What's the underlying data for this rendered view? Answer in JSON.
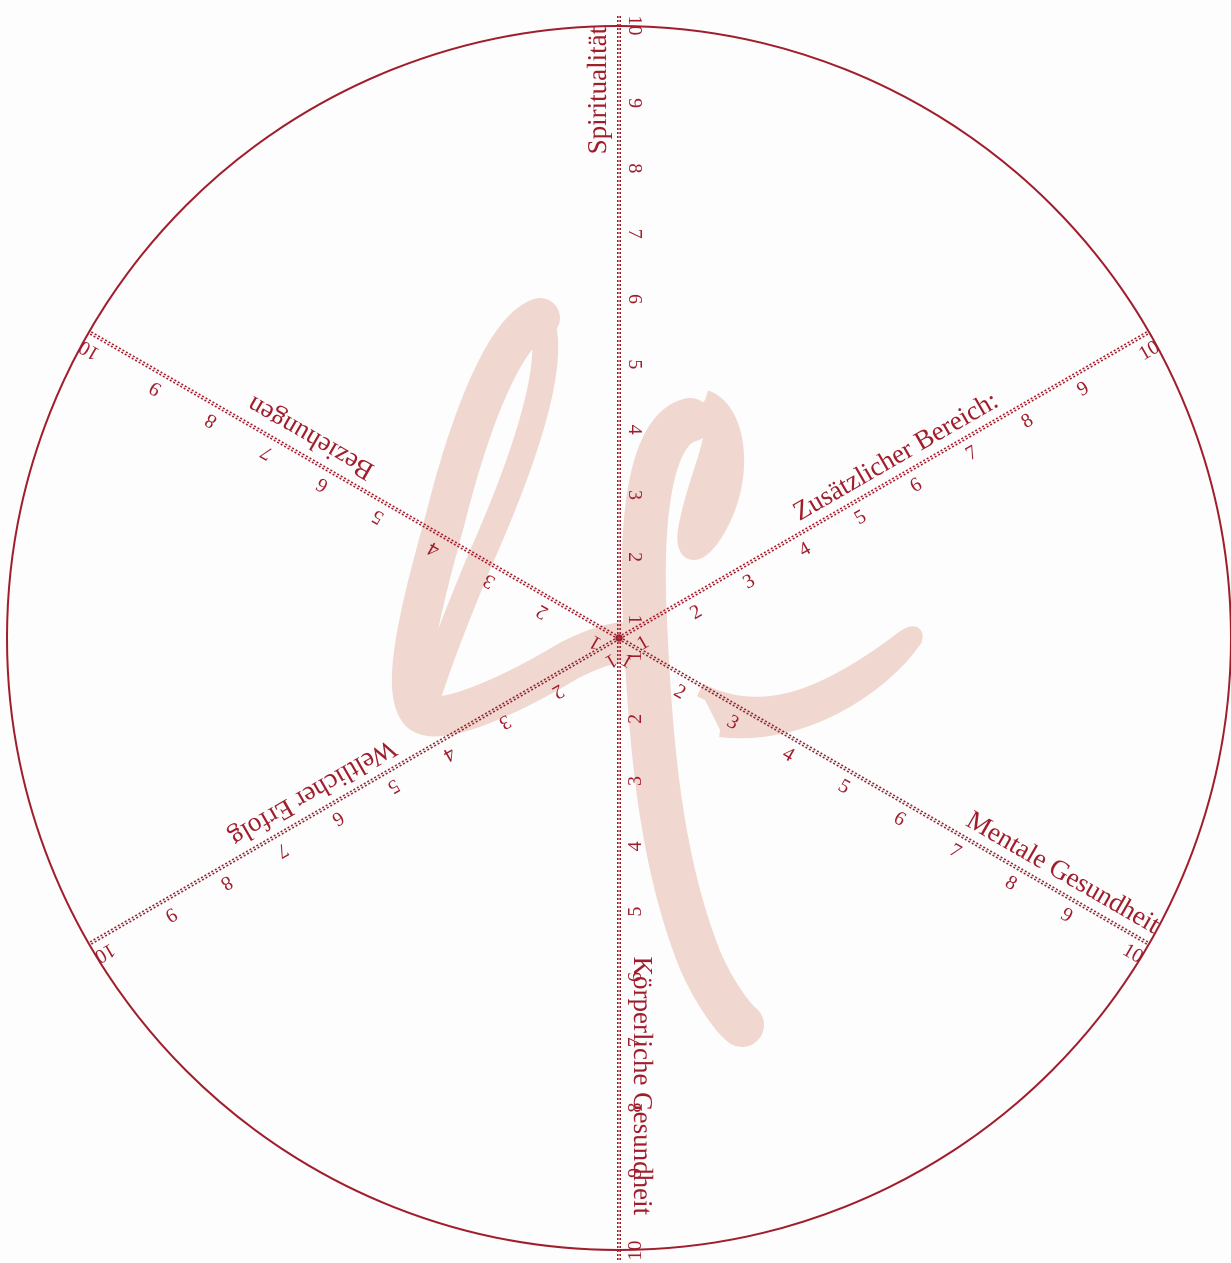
{
  "colors": {
    "line": "#a01d2c",
    "watermark": "#f0d8d0",
    "background": "#fdfdfd"
  },
  "watermark": {
    "text": "Life"
  },
  "scale": {
    "min": 1,
    "max": 10,
    "ticks": [
      "1",
      "2",
      "3",
      "4",
      "5",
      "6",
      "7",
      "8",
      "9",
      "10"
    ]
  },
  "axes": [
    {
      "id": "spiritualitaet",
      "label": "Spiritualität"
    },
    {
      "id": "zusaetzlicher-bereich",
      "label": "Zusätzlicher Bereich:"
    },
    {
      "id": "mentale-gesundheit",
      "label": "Mentale Gesundheit"
    },
    {
      "id": "koerperliche-gesundheit",
      "label": "Körperliche Gesundheit"
    },
    {
      "id": "weltlicher-erfolg",
      "label": "Weltlicher Erfolg"
    },
    {
      "id": "beziehungen",
      "label": "Beziehungen"
    }
  ]
}
